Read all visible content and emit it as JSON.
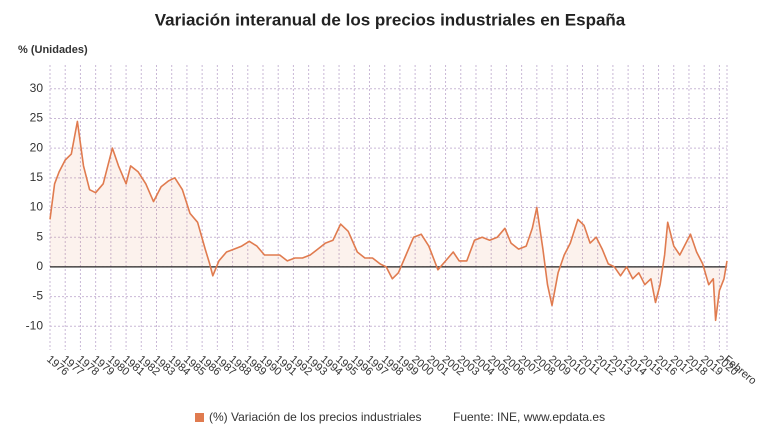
{
  "chart_data": {
    "type": "line",
    "title": "Variación interanual de los precios industriales en España",
    "y_label": "% (Unidades)",
    "source": "Fuente: INE, www.epdata.es",
    "x": [
      1976.0,
      1976.3,
      1976.6,
      1977.0,
      1977.4,
      1977.8,
      1978.2,
      1978.6,
      1979.0,
      1979.5,
      1980.1,
      1980.5,
      1981.0,
      1981.3,
      1981.8,
      1982.3,
      1982.8,
      1983.3,
      1983.8,
      1984.2,
      1984.7,
      1985.2,
      1985.7,
      1986.2,
      1986.5,
      1986.7,
      1987.1,
      1987.6,
      1988.1,
      1988.6,
      1989.1,
      1989.6,
      1990.1,
      1990.6,
      1991.1,
      1991.6,
      1992.1,
      1992.6,
      1993.1,
      1993.6,
      1994.1,
      1994.6,
      1995.1,
      1995.6,
      1996.2,
      1996.7,
      1997.2,
      1997.7,
      1998.1,
      1998.5,
      1998.9,
      1999.4,
      1999.9,
      2000.4,
      2000.9,
      2001.2,
      2001.5,
      2002.0,
      2002.5,
      2002.9,
      2003.4,
      2003.9,
      2004.4,
      2004.9,
      2005.4,
      2005.9,
      2006.3,
      2006.8,
      2007.3,
      2007.7,
      2008.0,
      2008.4,
      2008.7,
      2009.0,
      2009.4,
      2009.8,
      2010.2,
      2010.7,
      2011.1,
      2011.5,
      2011.9,
      2012.3,
      2012.7,
      2013.1,
      2013.5,
      2013.9,
      2014.3,
      2014.7,
      2015.1,
      2015.5,
      2015.8,
      2016.1,
      2016.4,
      2016.6,
      2017.0,
      2017.4,
      2017.8,
      2018.1,
      2018.5,
      2018.9,
      2019.3,
      2019.6,
      2019.75,
      2020.0,
      2020.3,
      2020.5
    ],
    "series": [
      {
        "name": "(%) Variación de los precios industriales",
        "color": "#e07b4f",
        "values": [
          8,
          14,
          16,
          18,
          19,
          24.5,
          17,
          13,
          12.5,
          14,
          20,
          17,
          14,
          17,
          16,
          14,
          11,
          13.5,
          14.5,
          15,
          13,
          9,
          7.5,
          3,
          0.5,
          -1.5,
          1,
          2.5,
          3,
          3.5,
          4.3,
          3.5,
          2,
          2,
          2,
          1,
          1.5,
          1.5,
          2,
          3,
          4,
          4.5,
          7.2,
          6,
          2.5,
          1.5,
          1.5,
          0.5,
          0,
          -2,
          -1,
          2,
          5,
          5.5,
          3.5,
          1.5,
          -0.5,
          1,
          2.5,
          1,
          1,
          4.5,
          5,
          4.5,
          5,
          6.5,
          4,
          3,
          3.5,
          6.5,
          10,
          3,
          -3,
          -6.5,
          -1,
          2,
          4,
          8,
          7,
          4,
          5,
          3,
          0.5,
          0,
          -1.5,
          0,
          -2,
          -1,
          -3,
          -2,
          -6,
          -3,
          2,
          7.5,
          3.5,
          2,
          4,
          5.5,
          2.5,
          0.5,
          -3,
          -2,
          -9,
          -4,
          -2,
          1
        ]
      }
    ],
    "xlim": [
      1976,
      2020.5
    ],
    "xticks": [
      1976,
      1977,
      1978,
      1979,
      1980,
      1981,
      1982,
      1983,
      1984,
      1985,
      1986,
      1987,
      1988,
      1989,
      1990,
      1991,
      1992,
      1993,
      1994,
      1995,
      1996,
      1997,
      1998,
      1999,
      2000,
      2001,
      2002,
      2003,
      2004,
      2005,
      2006,
      2007,
      2008,
      2009,
      2010,
      2011,
      2012,
      2013,
      2014,
      2015,
      2016,
      2017,
      2018,
      2019,
      2020,
      {
        "value": 2020.5,
        "label": "Febrero"
      }
    ],
    "ylim": [
      -14,
      34
    ],
    "yticks": [
      -10,
      -5,
      0,
      5,
      10,
      15,
      20,
      25,
      30
    ],
    "grid": true
  }
}
